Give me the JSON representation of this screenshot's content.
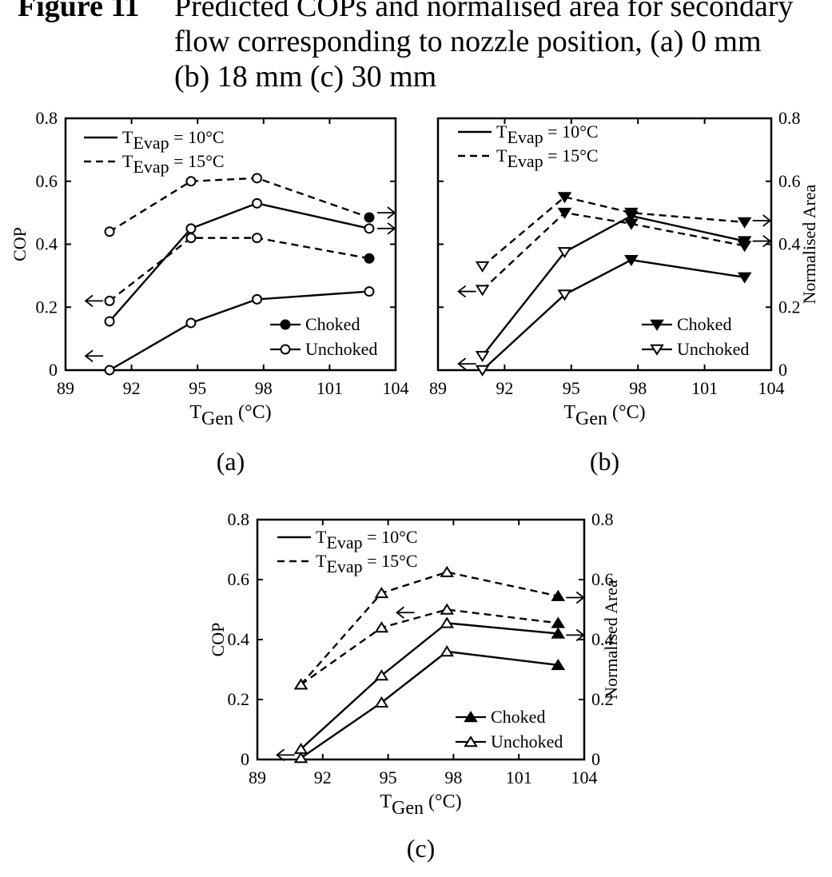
{
  "caption": {
    "figure_label": "Figure 11",
    "text_line1": "Predicted COPs and normalised area for secondary",
    "text_line2": "flow corresponding to nozzle position, (a) 0 mm",
    "text_line3": "(b) 18 mm (c) 30 mm"
  },
  "chart_data": [
    {
      "type": "line",
      "panel_label": "(a)",
      "xlabel": "T",
      "xlabel_sub": "Gen",
      "xlabel_unit": " (°C)",
      "ylabel_left": "COP",
      "ylabel_right": "",
      "xlim": [
        89,
        104
      ],
      "ylim": [
        0,
        0.8
      ],
      "y2lim": [
        0,
        0.8
      ],
      "xticks": [
        "89",
        "92",
        "95",
        "98",
        "101",
        "104"
      ],
      "yticks_left": [
        "0",
        "0.2",
        "0.4",
        "0.6",
        "0.8"
      ],
      "yticks_right": [],
      "legend_styles": [
        {
          "pre": "T",
          "sub": "Evap",
          "post": " = 10°C",
          "dash": false
        },
        {
          "pre": "T",
          "sub": "Evap",
          "post": " = 15°C",
          "dash": true
        }
      ],
      "legend_markers": [
        {
          "label": "Choked",
          "marker": "circle",
          "filled": true
        },
        {
          "label": "Unchoked",
          "marker": "circle",
          "filled": false
        }
      ],
      "series": [
        {
          "dash": true,
          "marker": "circle",
          "x": [
            91,
            94.7,
            97.7,
            102.8
          ],
          "y": [
            0.44,
            0.6,
            0.61,
            0.485
          ],
          "filled": [
            false,
            false,
            false,
            true
          ]
        },
        {
          "dash": false,
          "marker": "circle",
          "x": [
            91,
            94.7,
            97.7,
            102.8
          ],
          "y": [
            0.155,
            0.45,
            0.53,
            0.45
          ],
          "filled": [
            false,
            false,
            false,
            false
          ]
        },
        {
          "dash": true,
          "marker": "circle",
          "x": [
            91,
            94.7,
            97.7,
            102.8
          ],
          "y": [
            0.22,
            0.42,
            0.42,
            0.355
          ],
          "filled": [
            false,
            false,
            false,
            true
          ]
        },
        {
          "dash": false,
          "marker": "circle",
          "x": [
            91,
            94.7,
            97.7,
            102.8
          ],
          "y": [
            0,
            0.15,
            0.225,
            0.25
          ],
          "filled": [
            false,
            false,
            false,
            false
          ]
        }
      ],
      "arrows": [
        {
          "dir": "left",
          "x": 91,
          "y": 0.22
        },
        {
          "dir": "left",
          "x": 91,
          "y": 0.045
        },
        {
          "dir": "right",
          "x": 102.8,
          "y": 0.5
        },
        {
          "dir": "right",
          "x": 102.8,
          "y": 0.45
        }
      ]
    },
    {
      "type": "line",
      "panel_label": "(b)",
      "xlabel": "T",
      "xlabel_sub": "Gen",
      "xlabel_unit": " (°C)",
      "ylabel_left": "",
      "ylabel_right": "Normalised Area",
      "xlim": [
        89,
        104
      ],
      "ylim": [
        0,
        0.8
      ],
      "y2lim": [
        0,
        0.8
      ],
      "xticks": [
        "89",
        "92",
        "95",
        "98",
        "101",
        "104"
      ],
      "yticks_left": [],
      "yticks_right": [
        "0",
        "0.2",
        "0.4",
        "0.6",
        "0.8"
      ],
      "legend_styles": [
        {
          "pre": "T",
          "sub": "Evap",
          "post": " = 10°C",
          "dash": false
        },
        {
          "pre": "T",
          "sub": "Evap",
          "post": " = 15°C",
          "dash": true
        }
      ],
      "legend_markers": [
        {
          "label": "Choked",
          "marker": "tri-down",
          "filled": true
        },
        {
          "label": "Unchoked",
          "marker": "tri-down",
          "filled": false
        }
      ],
      "series": [
        {
          "dash": true,
          "marker": "tri-down",
          "x": [
            91,
            94.7,
            97.7,
            102.8
          ],
          "y": [
            0.33,
            0.55,
            0.5,
            0.47
          ],
          "filled": [
            false,
            true,
            true,
            true
          ]
        },
        {
          "dash": true,
          "marker": "tri-down",
          "x": [
            91,
            94.7,
            97.7,
            102.8
          ],
          "y": [
            0.255,
            0.5,
            0.465,
            0.395
          ],
          "filled": [
            false,
            true,
            true,
            true
          ]
        },
        {
          "dash": false,
          "marker": "tri-down",
          "x": [
            91,
            94.7,
            97.7,
            102.8
          ],
          "y": [
            0.045,
            0.375,
            0.49,
            0.41
          ],
          "filled": [
            false,
            false,
            true,
            true
          ]
        },
        {
          "dash": false,
          "marker": "tri-down",
          "x": [
            91,
            94.7,
            97.7,
            102.8
          ],
          "y": [
            0,
            0.24,
            0.35,
            0.295
          ],
          "filled": [
            false,
            false,
            true,
            true
          ]
        }
      ],
      "arrows": [
        {
          "dir": "left",
          "x": 91,
          "y": 0.25
        },
        {
          "dir": "left",
          "x": 91,
          "y": 0.02
        },
        {
          "dir": "right",
          "x": 102.8,
          "y": 0.475
        },
        {
          "dir": "right",
          "x": 102.8,
          "y": 0.41
        }
      ]
    },
    {
      "type": "line",
      "panel_label": "(c)",
      "xlabel": "T",
      "xlabel_sub": "Gen",
      "xlabel_unit": " (°C)",
      "ylabel_left": "COP",
      "ylabel_right": "Normalised Area",
      "xlim": [
        89,
        104
      ],
      "ylim": [
        0,
        0.8
      ],
      "y2lim": [
        0,
        0.8
      ],
      "xticks": [
        "89",
        "92",
        "95",
        "98",
        "101",
        "104"
      ],
      "yticks_left": [
        "0",
        "0.2",
        "0.4",
        "0.6",
        "0.8"
      ],
      "yticks_right": [
        "0",
        "0.2",
        "0.4",
        "0.6",
        "0.8"
      ],
      "legend_styles": [
        {
          "pre": "T",
          "sub": "Evap",
          "post": " = 10°C",
          "dash": false
        },
        {
          "pre": "T",
          "sub": "Evap",
          "post": " = 15°C",
          "dash": true
        }
      ],
      "legend_markers": [
        {
          "label": "Choked",
          "marker": "tri-up",
          "filled": true
        },
        {
          "label": "Unchoked",
          "marker": "tri-up",
          "filled": false
        }
      ],
      "series": [
        {
          "dash": true,
          "marker": "tri-up",
          "x": [
            91,
            94.7,
            97.7,
            102.8
          ],
          "y": [
            0.25,
            0.555,
            0.625,
            0.545
          ],
          "filled": [
            false,
            false,
            false,
            true
          ]
        },
        {
          "dash": true,
          "marker": "tri-up",
          "x": [
            91,
            94.7,
            97.7,
            102.8
          ],
          "y": [
            0.25,
            0.44,
            0.5,
            0.455
          ],
          "filled": [
            false,
            false,
            false,
            true
          ]
        },
        {
          "dash": false,
          "marker": "tri-up",
          "x": [
            91,
            94.7,
            97.7,
            102.8
          ],
          "y": [
            0.035,
            0.28,
            0.455,
            0.42
          ],
          "filled": [
            false,
            false,
            false,
            true
          ]
        },
        {
          "dash": false,
          "marker": "tri-up",
          "x": [
            91,
            94.7,
            97.7,
            102.8
          ],
          "y": [
            0.005,
            0.19,
            0.36,
            0.315
          ],
          "filled": [
            false,
            false,
            false,
            true
          ]
        }
      ],
      "arrows": [
        {
          "dir": "left",
          "x": 91,
          "y": 0.015
        },
        {
          "dir": "left",
          "x": 96.5,
          "y": 0.49
        },
        {
          "dir": "right",
          "x": 102.8,
          "y": 0.54
        },
        {
          "dir": "right",
          "x": 102.8,
          "y": 0.415
        }
      ]
    }
  ]
}
